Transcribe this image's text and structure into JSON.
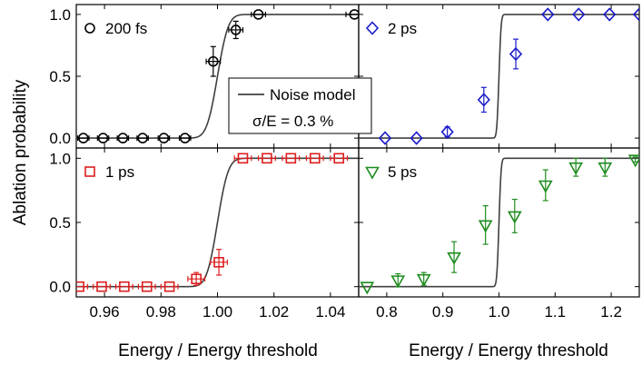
{
  "figure": {
    "ylabel": "Ablation probability",
    "xlabel_left": "Energy / Energy threshold",
    "xlabel_right": "Energy / Energy threshold",
    "legend": {
      "line_label": "Noise model",
      "note": "σ/E = 0.3 %"
    }
  },
  "chart_data": [
    {
      "type": "scatter",
      "panel": "top-left",
      "label": "200 fs",
      "marker": "circle",
      "color": "#000000",
      "xlim": [
        0.95,
        1.05
      ],
      "ylim": [
        -0.08,
        1.08
      ],
      "xticks": [
        0.96,
        0.98,
        1.0,
        1.02,
        1.04
      ],
      "yticks": [
        0.0,
        0.5,
        1.0
      ],
      "ytick_labels": [
        "0.0",
        "0.5",
        "1.0"
      ],
      "model": {
        "threshold": 1.0,
        "sigma": 0.003
      },
      "points": [
        {
          "x": 0.9525,
          "y": 0.0,
          "xerr": 0.002,
          "yerr": 0.0
        },
        {
          "x": 0.9595,
          "y": 0.0,
          "xerr": 0.002,
          "yerr": 0.0
        },
        {
          "x": 0.9665,
          "y": 0.0,
          "xerr": 0.002,
          "yerr": 0.0
        },
        {
          "x": 0.9735,
          "y": 0.0,
          "xerr": 0.002,
          "yerr": 0.0
        },
        {
          "x": 0.981,
          "y": 0.0,
          "xerr": 0.002,
          "yerr": 0.0
        },
        {
          "x": 0.9885,
          "y": 0.0,
          "xerr": 0.002,
          "yerr": 0.0
        },
        {
          "x": 0.9985,
          "y": 0.62,
          "xerr": 0.0025,
          "yerr": 0.12
        },
        {
          "x": 1.0065,
          "y": 0.875,
          "xerr": 0.0025,
          "yerr": 0.07
        },
        {
          "x": 1.0145,
          "y": 1.0,
          "xerr": 0.0025,
          "yerr": 0.0
        },
        {
          "x": 1.0485,
          "y": 1.0,
          "xerr": 0.003,
          "yerr": 0.0
        }
      ]
    },
    {
      "type": "scatter",
      "panel": "top-right",
      "label": "2 ps",
      "marker": "diamond",
      "color": "#1a1acc",
      "xlim": [
        0.75,
        1.25
      ],
      "ylim": [
        -0.08,
        1.08
      ],
      "xticks": [
        0.8,
        0.9,
        1.0,
        1.1,
        1.2
      ],
      "model": {
        "threshold": 1.0,
        "sigma": 0.003
      },
      "points": [
        {
          "x": 0.797,
          "y": 0.0,
          "yerr": 0.0
        },
        {
          "x": 0.853,
          "y": 0.0,
          "yerr": 0.0
        },
        {
          "x": 0.908,
          "y": 0.05,
          "yerr": 0.04
        },
        {
          "x": 0.973,
          "y": 0.31,
          "yerr": 0.1
        },
        {
          "x": 1.03,
          "y": 0.68,
          "yerr": 0.12
        },
        {
          "x": 1.087,
          "y": 1.0,
          "yerr": 0.0
        },
        {
          "x": 1.142,
          "y": 1.0,
          "yerr": 0.0
        },
        {
          "x": 1.197,
          "y": 1.0,
          "yerr": 0.0
        },
        {
          "x": 1.25,
          "y": 1.0,
          "yerr": 0.0
        }
      ]
    },
    {
      "type": "scatter",
      "panel": "bottom-left",
      "label": "1 ps",
      "marker": "square",
      "color": "#dd1e1e",
      "xlim": [
        0.95,
        1.05
      ],
      "ylim": [
        -0.08,
        1.08
      ],
      "xticks": [
        0.96,
        0.98,
        1.0,
        1.02,
        1.04
      ],
      "xtick_labels": [
        "0.96",
        "0.98",
        "1.00",
        "1.02",
        "1.04"
      ],
      "yticks": [
        0.0,
        0.5,
        1.0
      ],
      "ytick_labels": [
        "0.0",
        "0.5",
        "1.0"
      ],
      "model": {
        "threshold": 1.0,
        "sigma": 0.003
      },
      "points": [
        {
          "x": 0.951,
          "y": 0.0,
          "xerr": 0.003,
          "yerr": 0.0
        },
        {
          "x": 0.959,
          "y": 0.0,
          "xerr": 0.003,
          "yerr": 0.0
        },
        {
          "x": 0.967,
          "y": 0.0,
          "xerr": 0.003,
          "yerr": 0.0
        },
        {
          "x": 0.975,
          "y": 0.0,
          "xerr": 0.003,
          "yerr": 0.0
        },
        {
          "x": 0.983,
          "y": 0.0,
          "xerr": 0.003,
          "yerr": 0.0
        },
        {
          "x": 0.9925,
          "y": 0.06,
          "xerr": 0.003,
          "yerr": 0.05
        },
        {
          "x": 1.0005,
          "y": 0.19,
          "xerr": 0.003,
          "yerr": 0.1
        },
        {
          "x": 1.009,
          "y": 1.0,
          "xerr": 0.003,
          "yerr": 0.0
        },
        {
          "x": 1.0175,
          "y": 1.0,
          "xerr": 0.003,
          "yerr": 0.0
        },
        {
          "x": 1.026,
          "y": 1.0,
          "xerr": 0.003,
          "yerr": 0.0
        },
        {
          "x": 1.0345,
          "y": 1.0,
          "xerr": 0.003,
          "yerr": 0.0
        },
        {
          "x": 1.043,
          "y": 1.0,
          "xerr": 0.003,
          "yerr": 0.0
        }
      ]
    },
    {
      "type": "scatter",
      "panel": "bottom-right",
      "label": "5 ps",
      "marker": "triangle-down",
      "color": "#1e8c1e",
      "xlim": [
        0.75,
        1.25
      ],
      "ylim": [
        -0.08,
        1.08
      ],
      "xticks": [
        0.8,
        0.9,
        1.0,
        1.1,
        1.2
      ],
      "xtick_labels": [
        "0.8",
        "0.9",
        "1.0",
        "1.1",
        "1.2"
      ],
      "model": {
        "threshold": 1.0,
        "sigma": 0.003
      },
      "points": [
        {
          "x": 0.765,
          "y": 0.0,
          "yerr": 0.0
        },
        {
          "x": 0.82,
          "y": 0.05,
          "yerr": 0.05
        },
        {
          "x": 0.866,
          "y": 0.06,
          "yerr": 0.05
        },
        {
          "x": 0.92,
          "y": 0.23,
          "yerr": 0.12
        },
        {
          "x": 0.976,
          "y": 0.48,
          "yerr": 0.15
        },
        {
          "x": 1.028,
          "y": 0.55,
          "yerr": 0.13
        },
        {
          "x": 1.083,
          "y": 0.79,
          "yerr": 0.12
        },
        {
          "x": 1.137,
          "y": 0.93,
          "yerr": 0.07
        },
        {
          "x": 1.189,
          "y": 0.93,
          "yerr": 0.07
        },
        {
          "x": 1.243,
          "y": 0.99,
          "yerr": 0.02
        }
      ]
    }
  ]
}
